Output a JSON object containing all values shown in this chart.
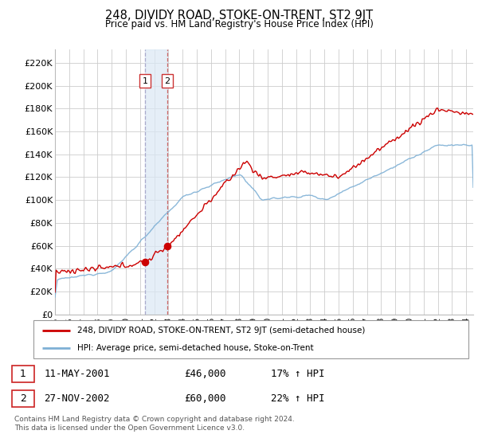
{
  "title": "248, DIVIDY ROAD, STOKE-ON-TRENT, ST2 9JT",
  "subtitle": "Price paid vs. HM Land Registry's House Price Index (HPI)",
  "ylabel_ticks": [
    "£0",
    "£20K",
    "£40K",
    "£60K",
    "£80K",
    "£100K",
    "£120K",
    "£140K",
    "£160K",
    "£180K",
    "£200K",
    "£220K"
  ],
  "ytick_vals": [
    0,
    20000,
    40000,
    60000,
    80000,
    100000,
    120000,
    140000,
    160000,
    180000,
    200000,
    220000
  ],
  "ylim": [
    0,
    232000
  ],
  "xlim_start": 1995.0,
  "xlim_end": 2024.5,
  "sale1_x": 2001.36,
  "sale1_y": 46000,
  "sale2_x": 2002.92,
  "sale2_y": 60000,
  "sale1_label": "1",
  "sale2_label": "2",
  "sale1_date": "11-MAY-2001",
  "sale1_price": "£46,000",
  "sale1_hpi": "17% ↑ HPI",
  "sale2_date": "27-NOV-2002",
  "sale2_price": "£60,000",
  "sale2_hpi": "22% ↑ HPI",
  "legend1": "248, DIVIDY ROAD, STOKE-ON-TRENT, ST2 9JT (semi-detached house)",
  "legend2": "HPI: Average price, semi-detached house, Stoke-on-Trent",
  "property_color": "#cc0000",
  "hpi_color": "#7eb0d5",
  "footnote": "Contains HM Land Registry data © Crown copyright and database right 2024.\nThis data is licensed under the Open Government Licence v3.0.",
  "background_color": "#ffffff",
  "grid_color": "#cccccc",
  "shade_color": "#dbe8f5",
  "vline1_color": "#aaaacc",
  "vline2_color": "#cc6666"
}
